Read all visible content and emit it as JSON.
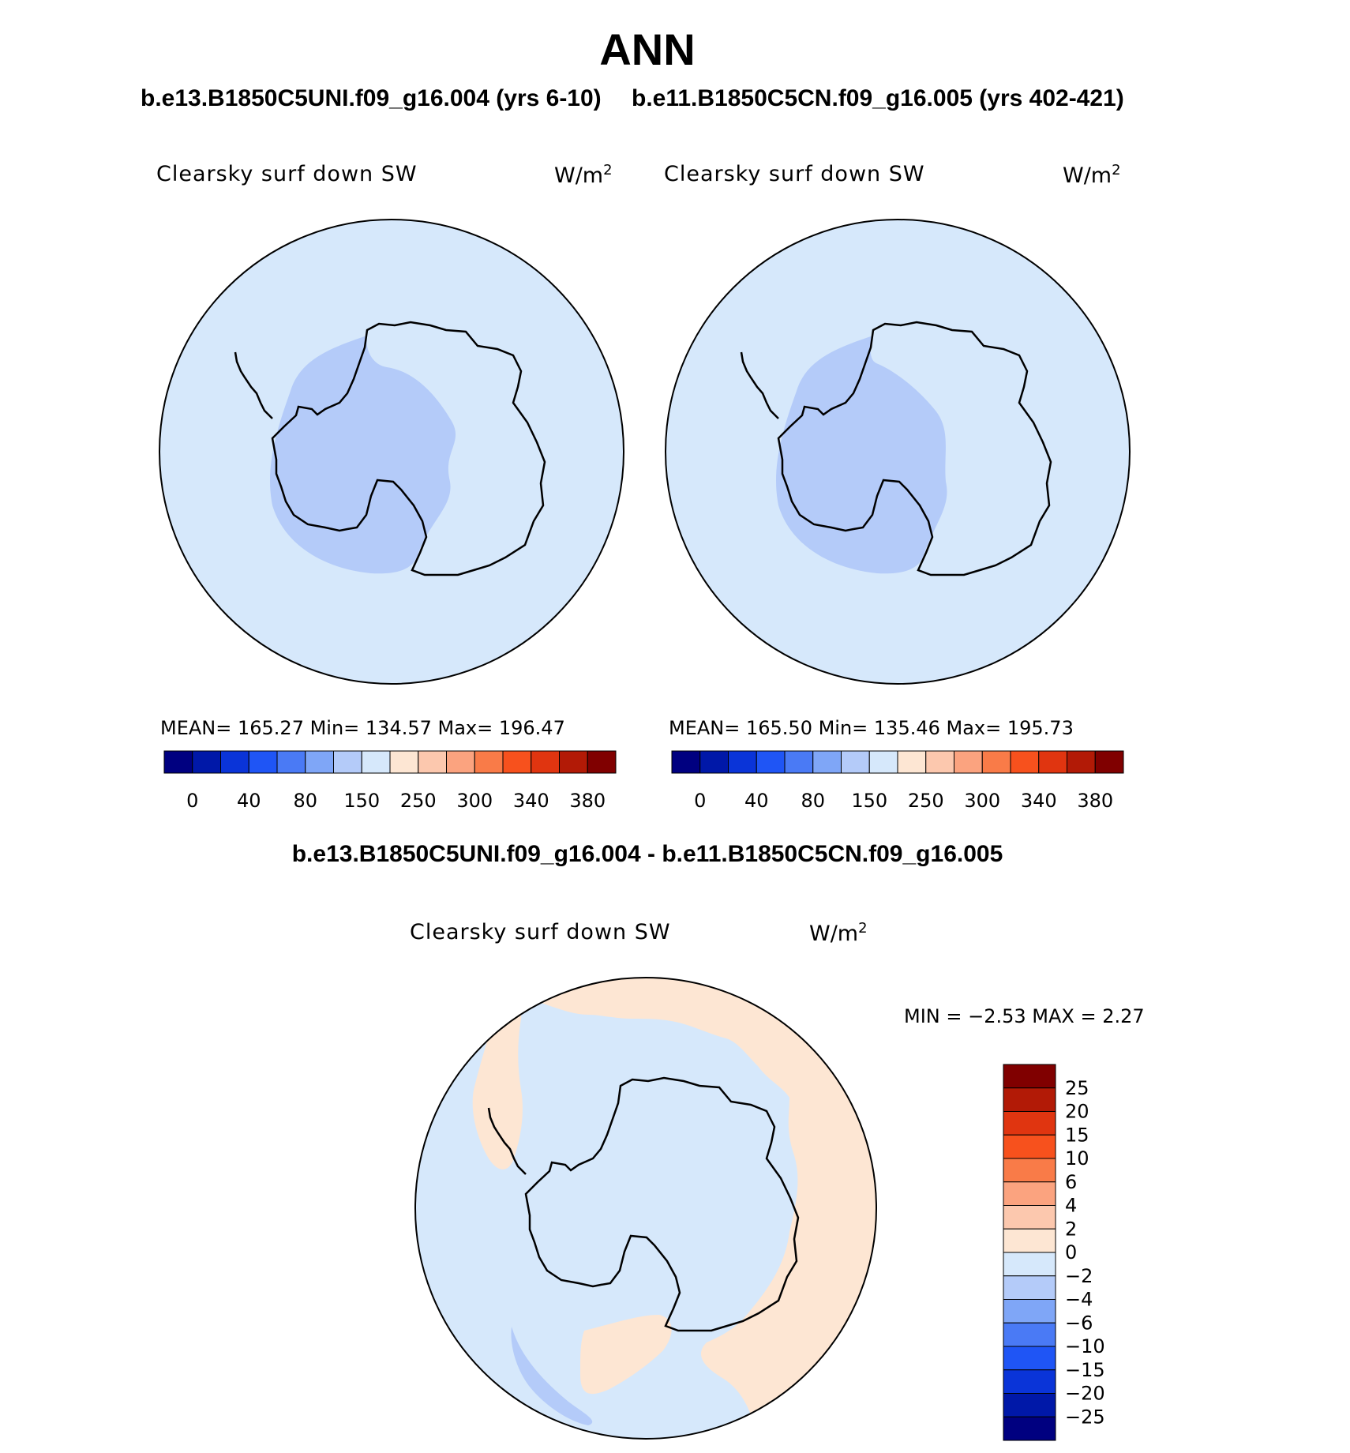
{
  "page": {
    "title": "ANN",
    "diff_title": "b.e13.B1850C5UNI.f09_g16.004 - b.e11.B1850C5CN.f09_g16.005"
  },
  "chart_data": [
    {
      "type": "heatmap",
      "title": "b.e13.B1850C5UNI.f09_g16.004 (yrs 6-10)",
      "variable": "Clearsky surf down SW",
      "units": "W/m2",
      "stats": {
        "mean": "165.27",
        "min": "134.57",
        "max": "196.47"
      },
      "stats_text": "MEAN=  165.27   Min=  134.57   Max=  196.47",
      "colorbar_ticks": [
        "0",
        "40",
        "80",
        "150",
        "250",
        "300",
        "340",
        "380"
      ]
    },
    {
      "type": "heatmap",
      "title": "b.e11.B1850C5CN.f09_g16.005 (yrs 402-421)",
      "variable": "Clearsky surf down SW",
      "units": "W/m2",
      "stats": {
        "mean": "165.50",
        "min": "135.46",
        "max": "195.73"
      },
      "stats_text": "MEAN=  165.50   Min=  135.46   Max=  195.73",
      "colorbar_ticks": [
        "0",
        "40",
        "80",
        "150",
        "250",
        "300",
        "340",
        "380"
      ]
    },
    {
      "type": "heatmap",
      "title": "b.e13.B1850C5UNI.f09_g16.004 - b.e11.B1850C5CN.f09_g16.005",
      "variable": "Clearsky surf down SW",
      "units": "W/m2",
      "stats": {
        "min": "−2.53",
        "max": "2.27"
      },
      "stats_text": "MIN =    −2.53  MAX =      2.27",
      "colorbar_ticks": [
        "25",
        "20",
        "15",
        "10",
        "6",
        "4",
        "2",
        "0",
        "−2",
        "−4",
        "−6",
        "−10",
        "−15",
        "−20",
        "−25"
      ]
    }
  ],
  "colors": {
    "mean_palette": [
      "#000080",
      "#0018a8",
      "#0a34d8",
      "#1f55f5",
      "#4a7af5",
      "#7fa6f7",
      "#b4cbf9",
      "#d6e8fb",
      "#fde6d3",
      "#fcc8ae",
      "#fba37f",
      "#f97b48",
      "#f7511d",
      "#e03510",
      "#b21a06",
      "#800000"
    ],
    "diff_palette": [
      "#800000",
      "#b21a06",
      "#e03510",
      "#f7511d",
      "#f97b48",
      "#fba37f",
      "#fcc8ae",
      "#fde6d3",
      "#d6e8fb",
      "#b4cbf9",
      "#7fa6f7",
      "#4a7af5",
      "#1f55f5",
      "#0a34d8",
      "#0018a8",
      "#000080"
    ],
    "ocean_light": "#d6e8fb",
    "region_mid": "#b4cbf9",
    "positive_light": "#fde6d3"
  }
}
